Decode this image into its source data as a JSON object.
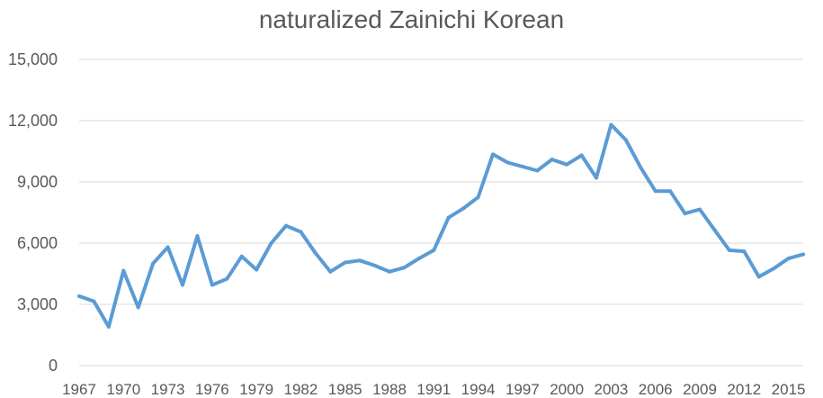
{
  "chart_data": {
    "type": "line",
    "title": "naturalized Zainichi Korean",
    "xlabel": "",
    "ylabel": "",
    "ylim": [
      0,
      15000
    ],
    "yticks": [
      0,
      3000,
      6000,
      9000,
      12000,
      15000
    ],
    "ytick_labels": [
      "0",
      "3,000",
      "6,000",
      "9,000",
      "12,000",
      "15,000"
    ],
    "xtick_labels": [
      "1967",
      "1970",
      "1973",
      "1976",
      "1979",
      "1982",
      "1985",
      "1988",
      "1991",
      "1994",
      "1997",
      "2000",
      "2003",
      "2006",
      "2009",
      "2012",
      "2015"
    ],
    "grid": true,
    "legend": "none",
    "series_color": "#5B9BD5",
    "grid_color": "#D9D9D9",
    "x": [
      1967,
      1968,
      1969,
      1970,
      1971,
      1972,
      1973,
      1974,
      1975,
      1976,
      1977,
      1978,
      1979,
      1980,
      1981,
      1982,
      1983,
      1984,
      1985,
      1986,
      1987,
      1988,
      1989,
      1990,
      1991,
      1992,
      1993,
      1994,
      1995,
      1996,
      1997,
      1998,
      1999,
      2000,
      2001,
      2002,
      2003,
      2004,
      2005,
      2006,
      2007,
      2008,
      2009,
      2010,
      2011,
      2012,
      2013,
      2014,
      2015,
      2016
    ],
    "values": [
      3400,
      3150,
      1900,
      4650,
      2850,
      5000,
      5800,
      3950,
      6350,
      3950,
      4250,
      5350,
      4700,
      6000,
      6850,
      6550,
      5500,
      4600,
      5050,
      5150,
      4900,
      4600,
      4800,
      5250,
      5650,
      7250,
      7700,
      8250,
      10350,
      9950,
      9750,
      9550,
      10100,
      9850,
      10300,
      9200,
      11800,
      11050,
      9700,
      8550,
      8550,
      7450,
      7650,
      6650,
      5650,
      5600,
      4350,
      4750,
      5250,
      5450
    ]
  }
}
